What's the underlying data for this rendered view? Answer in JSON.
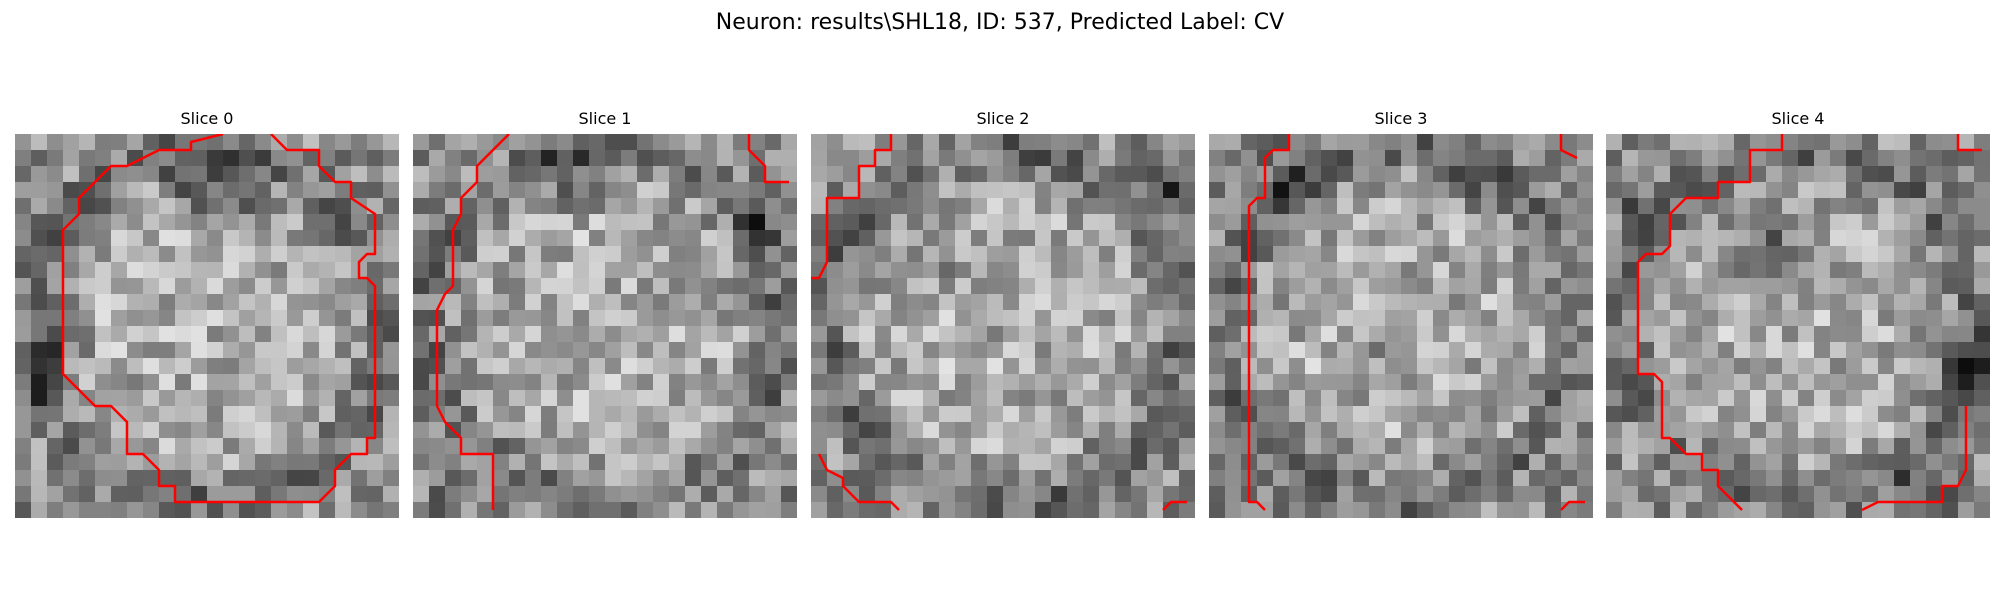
{
  "figure": {
    "title": "Neuron: results\\SHL18, ID: 537, Predicted Label: CV"
  },
  "panels": [
    {
      "title": "Slice 0"
    },
    {
      "title": "Slice 1"
    },
    {
      "title": "Slice 2"
    },
    {
      "title": "Slice 3"
    },
    {
      "title": "Slice 4"
    }
  ],
  "colors": {
    "contour": "#ff0000",
    "colormap": "gray"
  }
}
